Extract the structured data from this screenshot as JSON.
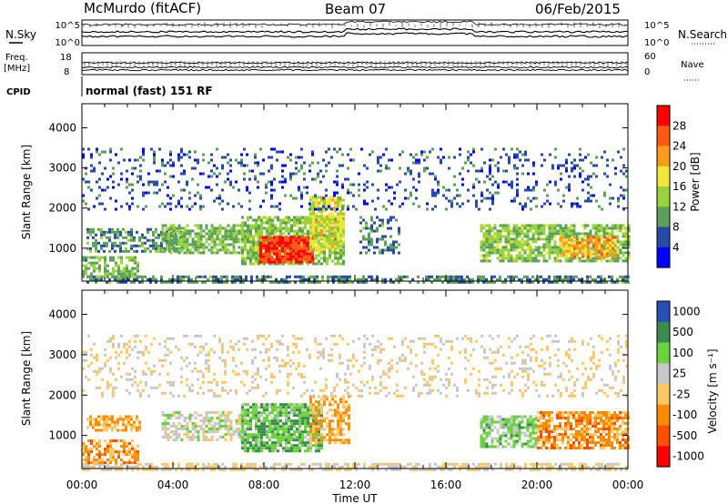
{
  "header": {
    "station": "McMurdo (fitACF)",
    "beam": "Beam 07",
    "date": "06/Feb/2015"
  },
  "top_panels": {
    "nsky_label": "N.Sky",
    "nsearch_label": "N.Search",
    "noise_ticks_left": [
      "10^5",
      "10^0"
    ],
    "noise_ticks_right": [
      "10^5",
      "10^0"
    ],
    "freq_label_1": "Freq.",
    "freq_label_2": "[MHz]",
    "freq_ticks": [
      "18",
      "8"
    ],
    "nave_ticks": [
      "60",
      "0"
    ],
    "nave_label": "Nave",
    "cpid_label": "CPID",
    "cpid_value": "normal (fast) 151 RF"
  },
  "chart_data": [
    {
      "type": "heatmap",
      "title": "",
      "xlabel": "",
      "ylabel": "Slant Range [km]",
      "x_ticks": [
        "00:00",
        "04:00",
        "08:00",
        "12:00",
        "16:00",
        "20:00",
        "00:00"
      ],
      "y_ticks": [
        "1000",
        "2000",
        "3000",
        "4000"
      ],
      "ylim": [
        180,
        4600
      ],
      "colorbar": {
        "label": "Power [dB]",
        "ticks": [
          "4",
          "8",
          "12",
          "16",
          "20",
          "24",
          "28"
        ],
        "range": [
          0,
          30
        ],
        "colors": [
          "#0000ff",
          "#2a4aa8",
          "#5aa05a",
          "#9ad23c",
          "#f0e63c",
          "#ff9b1e",
          "#ff5a14",
          "#ff0000"
        ]
      },
      "regions": [
        {
          "t0": 0.2,
          "t1": 24,
          "r0": 180,
          "r1": 320,
          "value": 8,
          "density": 0.6
        },
        {
          "t0": 0.0,
          "t1": 2.5,
          "r0": 300,
          "r1": 800,
          "value": 11,
          "density": 0.7
        },
        {
          "t0": 0.2,
          "t1": 4.5,
          "r0": 900,
          "r1": 1500,
          "value": 9,
          "density": 0.6
        },
        {
          "t0": 3.5,
          "t1": 7.0,
          "r0": 900,
          "r1": 1600,
          "value": 11,
          "density": 0.7
        },
        {
          "t0": 7.0,
          "t1": 11.5,
          "r0": 600,
          "r1": 1800,
          "value": 12,
          "density": 0.8
        },
        {
          "t0": 7.8,
          "t1": 10.2,
          "r0": 650,
          "r1": 1300,
          "value": 26,
          "density": 0.95
        },
        {
          "t0": 10.0,
          "t1": 11.5,
          "r0": 1000,
          "r1": 2300,
          "value": 16,
          "density": 0.8
        },
        {
          "t0": 12.2,
          "t1": 14.0,
          "r0": 900,
          "r1": 1800,
          "value": 8,
          "density": 0.4
        },
        {
          "t0": 17.5,
          "t1": 24.0,
          "r0": 700,
          "r1": 1600,
          "value": 12,
          "density": 0.75
        },
        {
          "t0": 21.0,
          "t1": 23.5,
          "r0": 800,
          "r1": 1300,
          "value": 20,
          "density": 0.8
        },
        {
          "t0": 0.0,
          "t1": 24.0,
          "r0": 2000,
          "r1": 3500,
          "value": 6,
          "density": 0.18
        }
      ]
    },
    {
      "type": "heatmap",
      "title": "",
      "xlabel": "Time UT",
      "ylabel": "Slant Range [km]",
      "x_ticks": [
        "00:00",
        "04:00",
        "08:00",
        "12:00",
        "16:00",
        "20:00",
        "00:00"
      ],
      "y_ticks": [
        "1000",
        "2000",
        "3000",
        "4000"
      ],
      "ylim": [
        180,
        4600
      ],
      "colorbar": {
        "label": "Velocity [m s⁻¹]",
        "ticks": [
          "1000",
          "500",
          "100",
          "25",
          "-25",
          "-100",
          "-500",
          "-1000"
        ],
        "range": [
          -1200,
          1200
        ],
        "colors": [
          "#2850b4",
          "#3c8c50",
          "#6ad23c",
          "#c8c8c8",
          "#ffc864",
          "#ff8c00",
          "#ff5000",
          "#ff0000"
        ]
      },
      "regions": [
        {
          "t0": 0.0,
          "t1": 24,
          "r0": 180,
          "r1": 320,
          "value": 0,
          "density": 0.6
        },
        {
          "t0": 0.0,
          "t1": 2.5,
          "r0": 300,
          "r1": 900,
          "value": -400,
          "density": 0.6
        },
        {
          "t0": 0.2,
          "t1": 2.5,
          "r0": 1100,
          "r1": 1500,
          "value": -300,
          "density": 0.6
        },
        {
          "t0": 3.5,
          "t1": 7.0,
          "r0": 900,
          "r1": 1600,
          "value": 150,
          "density": 0.6
        },
        {
          "t0": 7.0,
          "t1": 10.5,
          "r0": 600,
          "r1": 1800,
          "value": 500,
          "density": 0.85
        },
        {
          "t0": 10.0,
          "t1": 11.8,
          "r0": 800,
          "r1": 2000,
          "value": -300,
          "density": 0.6
        },
        {
          "t0": 17.5,
          "t1": 20.0,
          "r0": 700,
          "r1": 1500,
          "value": 400,
          "density": 0.7
        },
        {
          "t0": 20.0,
          "t1": 24.0,
          "r0": 700,
          "r1": 1600,
          "value": -400,
          "density": 0.75
        },
        {
          "t0": 0.0,
          "t1": 24.0,
          "r0": 2000,
          "r1": 3500,
          "value": 0,
          "density": 0.18
        }
      ]
    }
  ]
}
